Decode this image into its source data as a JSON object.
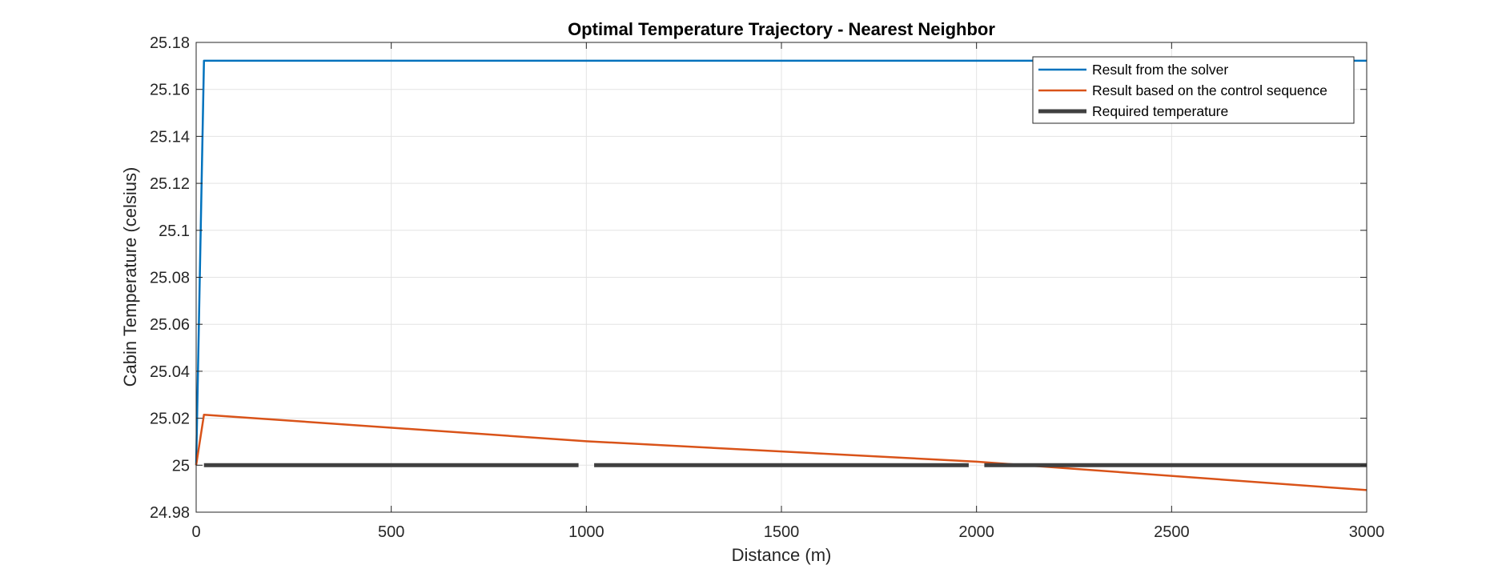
{
  "chart_data": {
    "type": "line",
    "title": "Optimal Temperature Trajectory - Nearest Neighbor",
    "xlabel": "Distance (m)",
    "ylabel": "Cabin Temperature (celsius)",
    "xlim": [
      0,
      3000
    ],
    "ylim": [
      24.98,
      25.18
    ],
    "xticks": [
      0,
      500,
      1000,
      1500,
      2000,
      2500,
      3000
    ],
    "xtick_labels": [
      "0",
      "500",
      "1000",
      "1500",
      "2000",
      "2500",
      "3000"
    ],
    "yticks": [
      24.98,
      25,
      25.02,
      25.04,
      25.06,
      25.08,
      25.1,
      25.12,
      25.14,
      25.16,
      25.18
    ],
    "ytick_labels": [
      "24.98",
      "25",
      "25.02",
      "25.04",
      "25.06",
      "25.08",
      "25.1",
      "25.12",
      "25.14",
      "25.16",
      "25.18"
    ],
    "grid": true,
    "legend_position": "top-right",
    "series": [
      {
        "name": "Result from the solver",
        "color": "#0072BD",
        "x": [
          0,
          20,
          3000
        ],
        "y": [
          25.0,
          25.1722,
          25.1722
        ]
      },
      {
        "name": "Result based on the control sequence",
        "color": "#D95319",
        "x": [
          0,
          20,
          1000,
          2000,
          3000
        ],
        "y": [
          25.0,
          25.0215,
          25.0102,
          25.0015,
          24.9894
        ]
      },
      {
        "name": "Required temperature",
        "color": "#404040",
        "segments": [
          {
            "x": [
              20,
              980
            ],
            "y": [
              25.0,
              25.0
            ]
          },
          {
            "x": [
              1020,
              1980
            ],
            "y": [
              25.0,
              25.0
            ]
          },
          {
            "x": [
              2020,
              3000
            ],
            "y": [
              25.0,
              25.0
            ]
          }
        ]
      }
    ]
  }
}
